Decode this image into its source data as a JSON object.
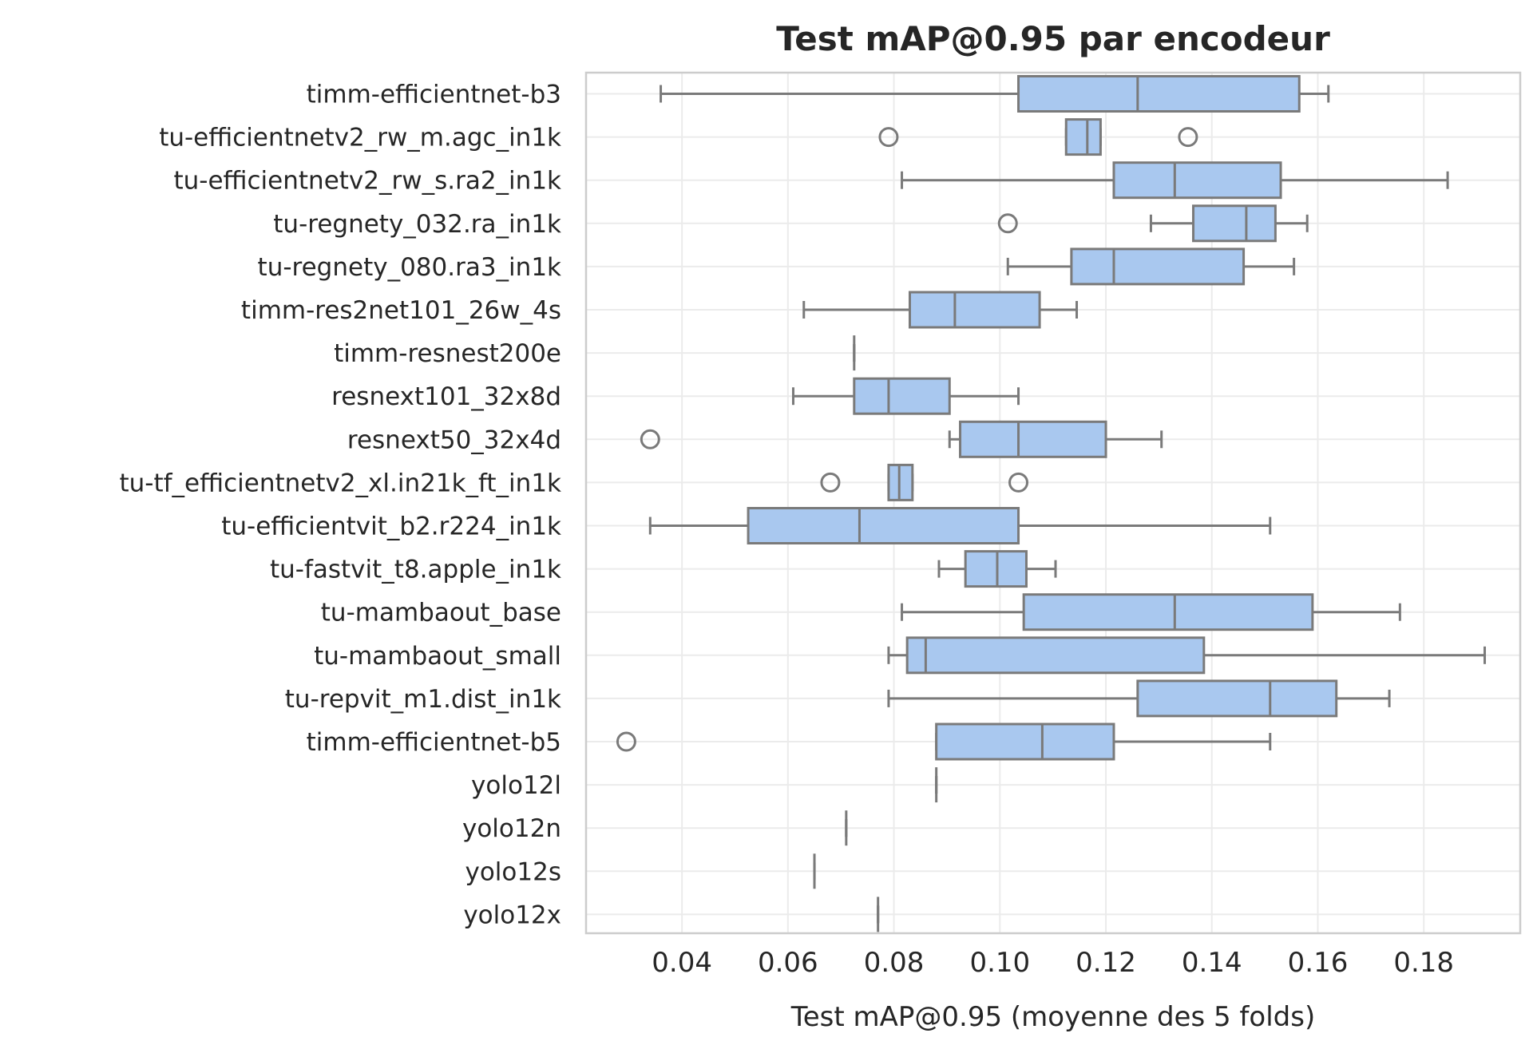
{
  "chart_data": {
    "type": "boxplot",
    "orientation": "horizontal",
    "title": "Test mAP@0.95 par encodeur",
    "xlabel": "Test mAP@0.95 (moyenne des 5 folds)",
    "ylabel": "",
    "xlim": [
      0.0219,
      0.1982
    ],
    "xticks": [
      0.04,
      0.06,
      0.08,
      0.1,
      0.12,
      0.14,
      0.16,
      0.18
    ],
    "xtick_labels": [
      "0.04",
      "0.06",
      "0.08",
      "0.10",
      "0.12",
      "0.14",
      "0.16",
      "0.18"
    ],
    "grid": true,
    "colors": {
      "box_fill": "#a9c8ef",
      "box_edge": "#7a7a7a",
      "grid": "#ebebeb",
      "frame": "#cccccc"
    },
    "series": [
      {
        "name": "timm-efficientnet-b3",
        "whislo": 0.036,
        "q1": 0.1035,
        "med": 0.126,
        "q3": 0.1565,
        "whishi": 0.162,
        "fliers": []
      },
      {
        "name": "tu-efficientnetv2_rw_m.agc_in1k",
        "whislo": 0.1125,
        "q1": 0.1125,
        "med": 0.1165,
        "q3": 0.119,
        "whishi": 0.119,
        "fliers": [
          0.079,
          0.1355
        ]
      },
      {
        "name": "tu-efficientnetv2_rw_s.ra2_in1k",
        "whislo": 0.0815,
        "q1": 0.1215,
        "med": 0.133,
        "q3": 0.153,
        "whishi": 0.1845,
        "fliers": []
      },
      {
        "name": "tu-regnety_032.ra_in1k",
        "whislo": 0.1285,
        "q1": 0.1365,
        "med": 0.1465,
        "q3": 0.152,
        "whishi": 0.158,
        "fliers": [
          0.1015
        ]
      },
      {
        "name": "tu-regnety_080.ra3_in1k",
        "whislo": 0.1015,
        "q1": 0.1135,
        "med": 0.1215,
        "q3": 0.146,
        "whishi": 0.1555,
        "fliers": []
      },
      {
        "name": "timm-res2net101_26w_4s",
        "whislo": 0.063,
        "q1": 0.083,
        "med": 0.0915,
        "q3": 0.1075,
        "whishi": 0.1145,
        "fliers": []
      },
      {
        "name": "timm-resnest200e",
        "whislo": 0.0725,
        "q1": 0.0725,
        "med": 0.0725,
        "q3": 0.0725,
        "whishi": 0.0725,
        "fliers": []
      },
      {
        "name": "resnext101_32x8d",
        "whislo": 0.061,
        "q1": 0.0725,
        "med": 0.079,
        "q3": 0.0905,
        "whishi": 0.1035,
        "fliers": []
      },
      {
        "name": "resnext50_32x4d",
        "whislo": 0.0905,
        "q1": 0.0925,
        "med": 0.1035,
        "q3": 0.12,
        "whishi": 0.1305,
        "fliers": [
          0.034
        ]
      },
      {
        "name": "tu-tf_efficientnetv2_xl.in21k_ft_in1k",
        "whislo": 0.079,
        "q1": 0.079,
        "med": 0.081,
        "q3": 0.0835,
        "whishi": 0.0835,
        "fliers": [
          0.068,
          0.1035
        ]
      },
      {
        "name": "tu-efficientvit_b2.r224_in1k",
        "whislo": 0.034,
        "q1": 0.0525,
        "med": 0.0735,
        "q3": 0.1035,
        "whishi": 0.151,
        "fliers": []
      },
      {
        "name": "tu-fastvit_t8.apple_in1k",
        "whislo": 0.0885,
        "q1": 0.0935,
        "med": 0.0995,
        "q3": 0.105,
        "whishi": 0.1105,
        "fliers": []
      },
      {
        "name": "tu-mambaout_base",
        "whislo": 0.0815,
        "q1": 0.1045,
        "med": 0.133,
        "q3": 0.159,
        "whishi": 0.1755,
        "fliers": []
      },
      {
        "name": "tu-mambaout_small",
        "whislo": 0.079,
        "q1": 0.0825,
        "med": 0.086,
        "q3": 0.1385,
        "whishi": 0.1915,
        "fliers": []
      },
      {
        "name": "tu-repvit_m1.dist_in1k",
        "whislo": 0.079,
        "q1": 0.126,
        "med": 0.151,
        "q3": 0.1635,
        "whishi": 0.1735,
        "fliers": []
      },
      {
        "name": "timm-efficientnet-b5",
        "whislo": 0.088,
        "q1": 0.088,
        "med": 0.108,
        "q3": 0.1215,
        "whishi": 0.151,
        "fliers": [
          0.0295
        ]
      },
      {
        "name": "yolo12l",
        "whislo": 0.088,
        "q1": 0.088,
        "med": 0.088,
        "q3": 0.088,
        "whishi": 0.088,
        "fliers": []
      },
      {
        "name": "yolo12n",
        "whislo": 0.071,
        "q1": 0.071,
        "med": 0.071,
        "q3": 0.071,
        "whishi": 0.071,
        "fliers": []
      },
      {
        "name": "yolo12s",
        "whislo": 0.065,
        "q1": 0.065,
        "med": 0.065,
        "q3": 0.065,
        "whishi": 0.065,
        "fliers": []
      },
      {
        "name": "yolo12x",
        "whislo": 0.077,
        "q1": 0.077,
        "med": 0.077,
        "q3": 0.077,
        "whishi": 0.077,
        "fliers": []
      }
    ]
  }
}
